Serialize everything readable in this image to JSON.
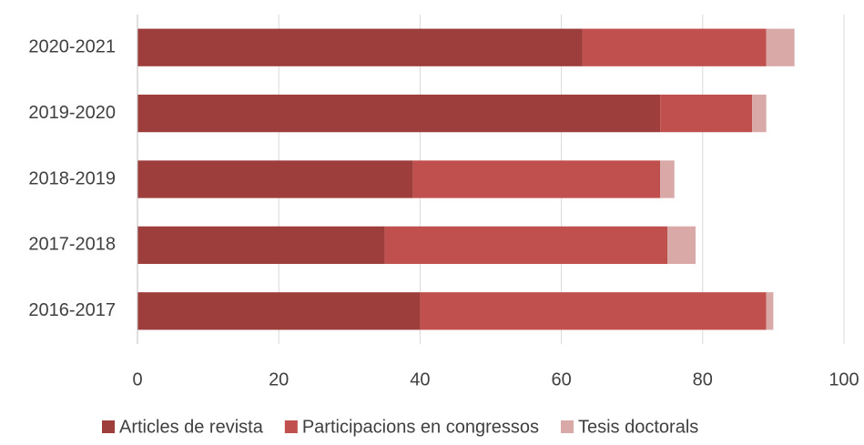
{
  "chart_data": {
    "type": "stacked_bar_horizontal",
    "categories": [
      "2020-2021",
      "2019-2020",
      "2018-2019",
      "2017-2018",
      "2016-2017"
    ],
    "series": [
      {
        "name": "Articles de revista",
        "color": "#9e3e3c",
        "values": [
          63,
          74,
          39,
          35,
          40
        ]
      },
      {
        "name": "Participacions en congressos",
        "color": "#c0504d",
        "values": [
          26,
          13,
          35,
          40,
          49
        ]
      },
      {
        "name": "Tesis doctorals",
        "color": "#d9a9a8",
        "values": [
          4,
          2,
          2,
          4,
          1
        ]
      }
    ],
    "xlim": [
      0,
      100
    ],
    "xticks": [
      0,
      20,
      40,
      60,
      80,
      100
    ],
    "grid": true,
    "legend": "bottom"
  }
}
